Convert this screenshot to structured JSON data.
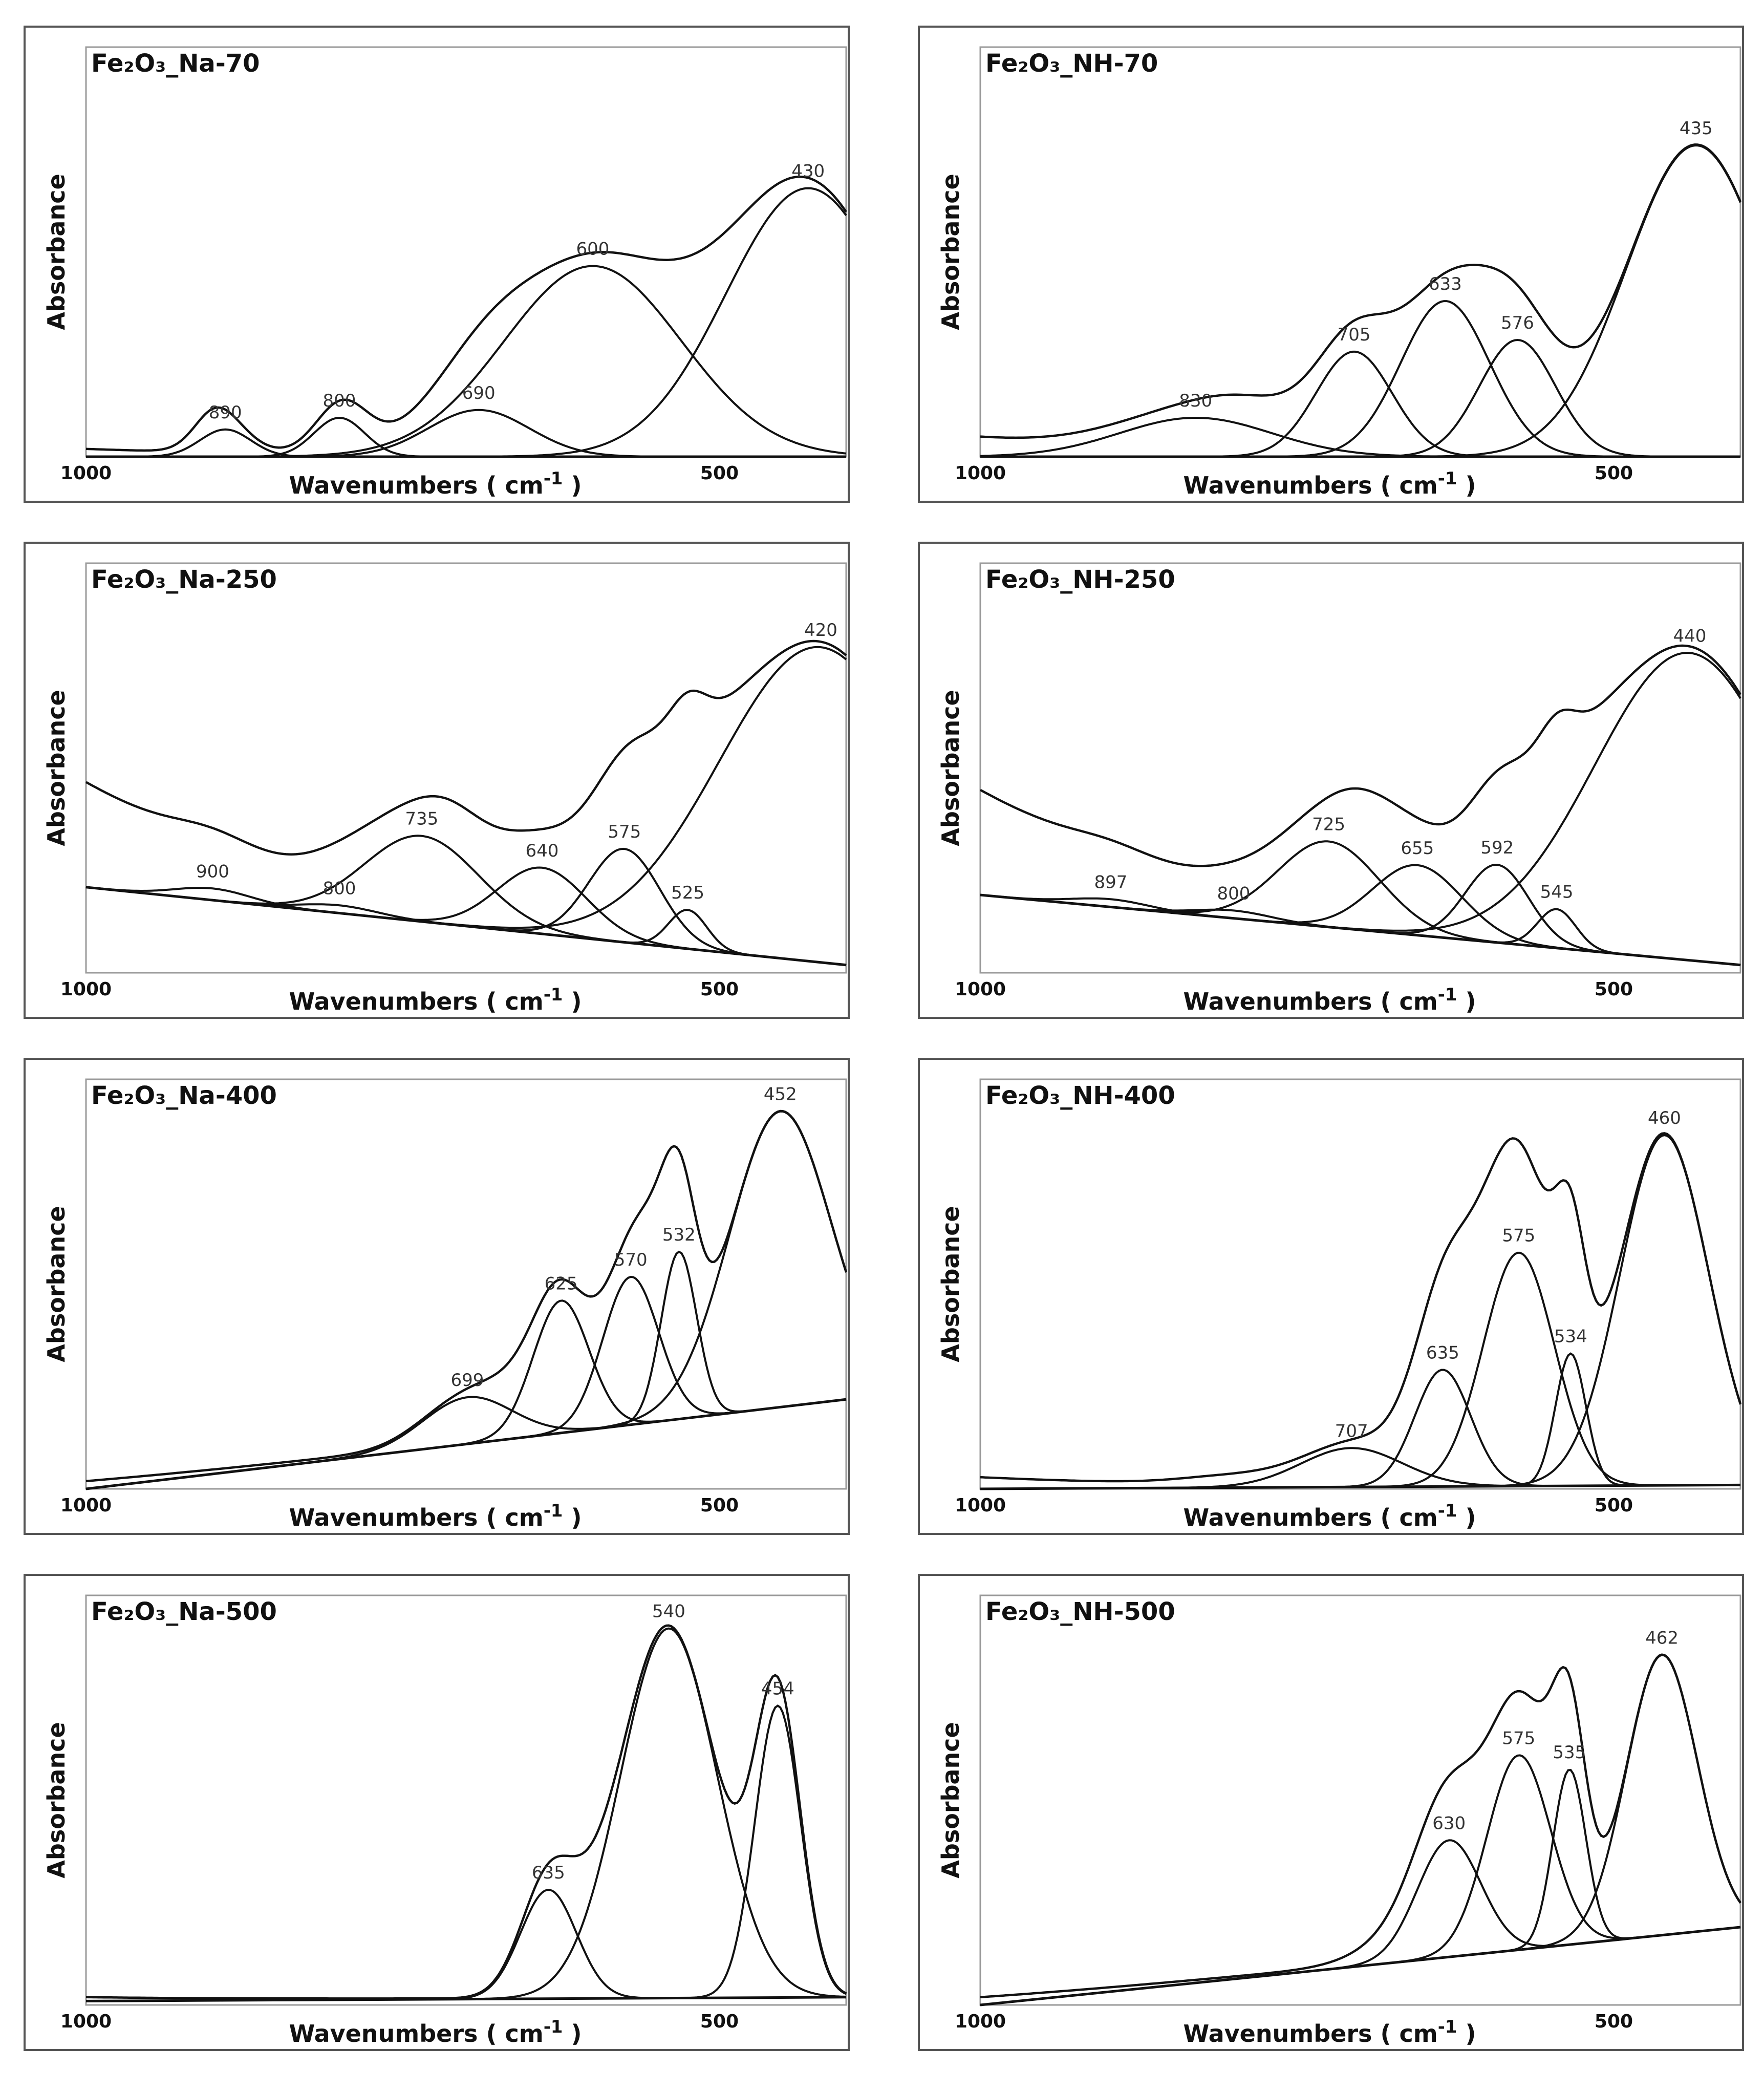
{
  "figure": {
    "common": {
      "ylabel": "Absorbance",
      "xlabel": "Wavenumbers ( cm",
      "xlabel_sup": "-1",
      "xlabel_close": " )",
      "x_tick_labels": [
        "1000",
        "500"
      ]
    }
  },
  "chart_data": [
    {
      "type": "line",
      "title": "Fe₂O₃_Na-70",
      "xlabel": "Wavenumbers ( cm-1 )",
      "ylabel": "Absorbance",
      "xlim": [
        1000,
        400
      ],
      "x_ticks": [
        1000,
        500
      ],
      "baseline": [
        0,
        0
      ],
      "envelope_start": 0.02,
      "bumps": [
        [
          900,
          0.05,
          15
        ],
        [
          790,
          0.03,
          20
        ]
      ],
      "peaks": [
        {
          "label": "890",
          "center": 890,
          "height": 0.07,
          "width": 20
        },
        {
          "label": "800",
          "center": 800,
          "height": 0.1,
          "width": 20
        },
        {
          "label": "690",
          "center": 690,
          "height": 0.12,
          "width": 40
        },
        {
          "label": "600",
          "center": 600,
          "height": 0.49,
          "width": 70
        },
        {
          "label": "430",
          "center": 430,
          "height": 0.69,
          "width": 65
        }
      ]
    },
    {
      "type": "line",
      "title": "Fe₂O₃_NH-70",
      "xlabel": "Wavenumbers ( cm-1 )",
      "ylabel": "Absorbance",
      "xlim": [
        1000,
        400
      ],
      "x_ticks": [
        1000,
        500
      ],
      "baseline": [
        0,
        0
      ],
      "envelope_start": 0.05,
      "bumps": [
        [
          780,
          0.06,
          40
        ]
      ],
      "peaks": [
        {
          "label": "830",
          "center": 830,
          "height": 0.1,
          "width": 60
        },
        {
          "label": "705",
          "center": 705,
          "height": 0.27,
          "width": 30
        },
        {
          "label": "633",
          "center": 633,
          "height": 0.4,
          "width": 35
        },
        {
          "label": "576",
          "center": 576,
          "height": 0.3,
          "width": 30
        },
        {
          "label": "435",
          "center": 435,
          "height": 0.8,
          "width": 55
        }
      ]
    },
    {
      "type": "line",
      "title": "Fe₂O₃_Na-250",
      "xlabel": "Wavenumbers ( cm-1 )",
      "ylabel": "Absorbance",
      "xlim": [
        1000,
        400
      ],
      "x_ticks": [
        1000,
        500
      ],
      "baseline": [
        0.22,
        0.02
      ],
      "envelope_start": 0.27,
      "bumps": [
        [
          710,
          0.05,
          25
        ],
        [
          530,
          0.15,
          40
        ]
      ],
      "peaks": [
        {
          "label": "900",
          "center": 900,
          "height": 0.03,
          "width": 30
        },
        {
          "label": "800",
          "center": 800,
          "height": 0.02,
          "width": 30
        },
        {
          "label": "735",
          "center": 735,
          "height": 0.22,
          "width": 45
        },
        {
          "label": "640",
          "center": 640,
          "height": 0.17,
          "width": 35
        },
        {
          "label": "575",
          "center": 575,
          "height": 0.24,
          "width": 28
        },
        {
          "label": "525",
          "center": 525,
          "height": 0.1,
          "width": 15
        },
        {
          "label": "420",
          "center": 420,
          "height": 0.81,
          "width": 80
        }
      ]
    },
    {
      "type": "line",
      "title": "Fe₂O₃_NH-250",
      "xlabel": "Wavenumbers ( cm-1 )",
      "ylabel": "Absorbance",
      "xlim": [
        1000,
        400
      ],
      "x_ticks": [
        1000,
        500
      ],
      "baseline": [
        0.2,
        0.02
      ],
      "envelope_start": 0.27,
      "bumps": [
        [
          700,
          0.05,
          25
        ],
        [
          545,
          0.15,
          40
        ]
      ],
      "peaks": [
        {
          "label": "897",
          "center": 897,
          "height": 0.02,
          "width": 30
        },
        {
          "label": "800",
          "center": 800,
          "height": 0.02,
          "width": 30
        },
        {
          "label": "725",
          "center": 725,
          "height": 0.22,
          "width": 40
        },
        {
          "label": "655",
          "center": 655,
          "height": 0.18,
          "width": 35
        },
        {
          "label": "592",
          "center": 592,
          "height": 0.2,
          "width": 25
        },
        {
          "label": "545",
          "center": 545,
          "height": 0.1,
          "width": 15
        },
        {
          "label": "440",
          "center": 440,
          "height": 0.79,
          "width": 75
        }
      ]
    },
    {
      "type": "line",
      "title": "Fe₂O₃_Na-400",
      "xlabel": "Wavenumbers ( cm-1 )",
      "ylabel": "Absorbance",
      "xlim": [
        1000,
        400
      ],
      "x_ticks": [
        1000,
        500
      ],
      "baseline": [
        0,
        0.23
      ],
      "envelope_start": 0.02,
      "bumps": [
        [
          553,
          0.14,
          18
        ],
        [
          660,
          0.06,
          25
        ]
      ],
      "peaks": [
        {
          "label": "699",
          "center": 699,
          "height": 0.12,
          "width": 35
        },
        {
          "label": "625",
          "center": 625,
          "height": 0.34,
          "width": 22
        },
        {
          "label": "570",
          "center": 570,
          "height": 0.38,
          "width": 22
        },
        {
          "label": "532",
          "center": 532,
          "height": 0.43,
          "width": 14
        },
        {
          "label": "452",
          "center": 452,
          "height": 0.76,
          "width": 40
        }
      ]
    },
    {
      "type": "line",
      "title": "Fe₂O₃_NH-400",
      "xlabel": "Wavenumbers ( cm-1 )",
      "ylabel": "Absorbance",
      "xlim": [
        1000,
        400
      ],
      "x_ticks": [
        1000,
        500
      ],
      "baseline": [
        0,
        0.01
      ],
      "envelope_start": 0.03,
      "bumps": [
        [
          595,
          0.3,
          45
        ],
        [
          800,
          0.02,
          40
        ]
      ],
      "peaks": [
        {
          "label": "707",
          "center": 707,
          "height": 0.1,
          "width": 40
        },
        {
          "label": "635",
          "center": 635,
          "height": 0.3,
          "width": 22
        },
        {
          "label": "575",
          "center": 575,
          "height": 0.6,
          "width": 28
        },
        {
          "label": "534",
          "center": 534,
          "height": 0.34,
          "width": 12
        },
        {
          "label": "460",
          "center": 460,
          "height": 0.9,
          "width": 35
        }
      ]
    },
    {
      "type": "line",
      "title": "Fe₂O₃_Na-500",
      "xlabel": "Wavenumbers ( cm-1 )",
      "ylabel": "Absorbance",
      "xlim": [
        1000,
        400
      ],
      "x_ticks": [
        1000,
        500
      ],
      "baseline": [
        0.01,
        0.02
      ],
      "envelope_start": 0.01,
      "bumps": [
        [
          600,
          0.05,
          30
        ]
      ],
      "peaks": [
        {
          "label": "635",
          "center": 635,
          "height": 0.28,
          "width": 22
        },
        {
          "label": "540",
          "center": 540,
          "height": 0.95,
          "width": 38
        },
        {
          "label": "454",
          "center": 454,
          "height": 0.75,
          "width": 18
        }
      ]
    },
    {
      "type": "line",
      "title": "Fe₂O₃_NH-500",
      "xlabel": "Wavenumbers ( cm-1 )",
      "ylabel": "Absorbance",
      "xlim": [
        1000,
        400
      ],
      "x_ticks": [
        1000,
        500
      ],
      "baseline": [
        0,
        0.2
      ],
      "envelope_start": 0.02,
      "bumps": [
        [
          640,
          0.12,
          40
        ],
        [
          560,
          0.12,
          25
        ]
      ],
      "peaks": [
        {
          "label": "630",
          "center": 630,
          "height": 0.3,
          "width": 25
        },
        {
          "label": "575",
          "center": 575,
          "height": 0.5,
          "width": 25
        },
        {
          "label": "535",
          "center": 535,
          "height": 0.45,
          "width": 13
        },
        {
          "label": "462",
          "center": 462,
          "height": 0.72,
          "width": 28
        }
      ]
    }
  ]
}
